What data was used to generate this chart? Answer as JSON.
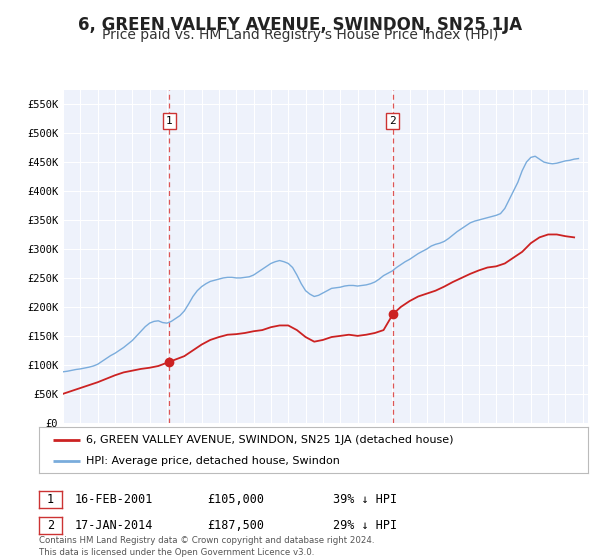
{
  "title": "6, GREEN VALLEY AVENUE, SWINDON, SN25 1JA",
  "subtitle": "Price paid vs. HM Land Registry's House Price Index (HPI)",
  "title_fontsize": 12,
  "subtitle_fontsize": 10,
  "background_color": "#ffffff",
  "plot_background_color": "#eef2fb",
  "grid_color": "#ffffff",
  "xlim": [
    1995.0,
    2025.3
  ],
  "ylim": [
    0,
    575000
  ],
  "yticks": [
    0,
    50000,
    100000,
    150000,
    200000,
    250000,
    300000,
    350000,
    400000,
    450000,
    500000,
    550000
  ],
  "ytick_labels": [
    "£0",
    "£50K",
    "£100K",
    "£150K",
    "£200K",
    "£250K",
    "£300K",
    "£350K",
    "£400K",
    "£450K",
    "£500K",
    "£550K"
  ],
  "xticks": [
    1995,
    1996,
    1997,
    1998,
    1999,
    2000,
    2001,
    2002,
    2003,
    2004,
    2005,
    2006,
    2007,
    2008,
    2009,
    2010,
    2011,
    2012,
    2013,
    2014,
    2015,
    2016,
    2017,
    2018,
    2019,
    2020,
    2021,
    2022,
    2023,
    2024,
    2025
  ],
  "sale1_x": 2001.12,
  "sale1_y": 105000,
  "sale1_label": "1",
  "sale1_date": "16-FEB-2001",
  "sale1_price": "£105,000",
  "sale1_hpi": "39% ↓ HPI",
  "sale2_x": 2014.04,
  "sale2_y": 187500,
  "sale2_label": "2",
  "sale2_date": "17-JAN-2014",
  "sale2_price": "£187,500",
  "sale2_hpi": "29% ↓ HPI",
  "hpi_color": "#7aacdc",
  "price_color": "#cc2222",
  "sale_marker_color": "#cc2222",
  "vline_color": "#dd5555",
  "legend_label_price": "6, GREEN VALLEY AVENUE, SWINDON, SN25 1JA (detached house)",
  "legend_label_hpi": "HPI: Average price, detached house, Swindon",
  "footnote": "Contains HM Land Registry data © Crown copyright and database right 2024.\nThis data is licensed under the Open Government Licence v3.0.",
  "hpi_data_x": [
    1995.0,
    1995.25,
    1995.5,
    1995.75,
    1996.0,
    1996.25,
    1996.5,
    1996.75,
    1997.0,
    1997.25,
    1997.5,
    1997.75,
    1998.0,
    1998.25,
    1998.5,
    1998.75,
    1999.0,
    1999.25,
    1999.5,
    1999.75,
    2000.0,
    2000.25,
    2000.5,
    2000.75,
    2001.0,
    2001.25,
    2001.5,
    2001.75,
    2002.0,
    2002.25,
    2002.5,
    2002.75,
    2003.0,
    2003.25,
    2003.5,
    2003.75,
    2004.0,
    2004.25,
    2004.5,
    2004.75,
    2005.0,
    2005.25,
    2005.5,
    2005.75,
    2006.0,
    2006.25,
    2006.5,
    2006.75,
    2007.0,
    2007.25,
    2007.5,
    2007.75,
    2008.0,
    2008.25,
    2008.5,
    2008.75,
    2009.0,
    2009.25,
    2009.5,
    2009.75,
    2010.0,
    2010.25,
    2010.5,
    2010.75,
    2011.0,
    2011.25,
    2011.5,
    2011.75,
    2012.0,
    2012.25,
    2012.5,
    2012.75,
    2013.0,
    2013.25,
    2013.5,
    2013.75,
    2014.0,
    2014.25,
    2014.5,
    2014.75,
    2015.0,
    2015.25,
    2015.5,
    2015.75,
    2016.0,
    2016.25,
    2016.5,
    2016.75,
    2017.0,
    2017.25,
    2017.5,
    2017.75,
    2018.0,
    2018.25,
    2018.5,
    2018.75,
    2019.0,
    2019.25,
    2019.5,
    2019.75,
    2020.0,
    2020.25,
    2020.5,
    2020.75,
    2021.0,
    2021.25,
    2021.5,
    2021.75,
    2022.0,
    2022.25,
    2022.5,
    2022.75,
    2023.0,
    2023.25,
    2023.5,
    2023.75,
    2024.0,
    2024.25,
    2024.5,
    2024.75
  ],
  "hpi_data_y": [
    88000,
    89000,
    90500,
    92000,
    93000,
    94500,
    96000,
    98000,
    101000,
    106000,
    111000,
    116000,
    120000,
    125000,
    130000,
    136000,
    142000,
    150000,
    158000,
    166000,
    172000,
    175000,
    176000,
    173000,
    172000,
    175000,
    180000,
    185000,
    193000,
    205000,
    218000,
    228000,
    235000,
    240000,
    244000,
    246000,
    248000,
    250000,
    251000,
    251000,
    250000,
    250000,
    251000,
    252000,
    255000,
    260000,
    265000,
    270000,
    275000,
    278000,
    280000,
    278000,
    275000,
    268000,
    255000,
    240000,
    228000,
    222000,
    218000,
    220000,
    224000,
    228000,
    232000,
    233000,
    234000,
    236000,
    237000,
    237000,
    236000,
    237000,
    238000,
    240000,
    243000,
    248000,
    254000,
    258000,
    262000,
    268000,
    273000,
    278000,
    282000,
    287000,
    292000,
    296000,
    300000,
    305000,
    308000,
    310000,
    313000,
    318000,
    324000,
    330000,
    335000,
    340000,
    345000,
    348000,
    350000,
    352000,
    354000,
    356000,
    358000,
    361000,
    370000,
    385000,
    400000,
    415000,
    435000,
    450000,
    458000,
    460000,
    455000,
    450000,
    448000,
    447000,
    448000,
    450000,
    452000,
    453000,
    455000,
    456000
  ],
  "price_data_x": [
    1995.0,
    1995.5,
    1996.0,
    1996.5,
    1997.0,
    1997.5,
    1998.0,
    1998.5,
    1999.0,
    1999.5,
    2000.0,
    2000.5,
    2001.12,
    2002.0,
    2002.5,
    2003.0,
    2003.5,
    2004.0,
    2004.5,
    2005.0,
    2005.5,
    2006.0,
    2006.5,
    2007.0,
    2007.5,
    2008.0,
    2008.5,
    2009.0,
    2009.5,
    2010.0,
    2010.5,
    2011.0,
    2011.5,
    2012.0,
    2012.5,
    2013.0,
    2013.5,
    2014.04,
    2014.5,
    2015.0,
    2015.5,
    2016.0,
    2016.5,
    2017.0,
    2017.5,
    2018.0,
    2018.5,
    2019.0,
    2019.5,
    2020.0,
    2020.5,
    2021.0,
    2021.5,
    2022.0,
    2022.5,
    2023.0,
    2023.5,
    2024.0,
    2024.5
  ],
  "price_data_y": [
    50000,
    55000,
    60000,
    65000,
    70000,
    76000,
    82000,
    87000,
    90000,
    93000,
    95000,
    98000,
    105000,
    115000,
    125000,
    135000,
    143000,
    148000,
    152000,
    153000,
    155000,
    158000,
    160000,
    165000,
    168000,
    168000,
    160000,
    148000,
    140000,
    143000,
    148000,
    150000,
    152000,
    150000,
    152000,
    155000,
    160000,
    187500,
    200000,
    210000,
    218000,
    223000,
    228000,
    235000,
    243000,
    250000,
    257000,
    263000,
    268000,
    270000,
    275000,
    285000,
    295000,
    310000,
    320000,
    325000,
    325000,
    322000,
    320000
  ]
}
